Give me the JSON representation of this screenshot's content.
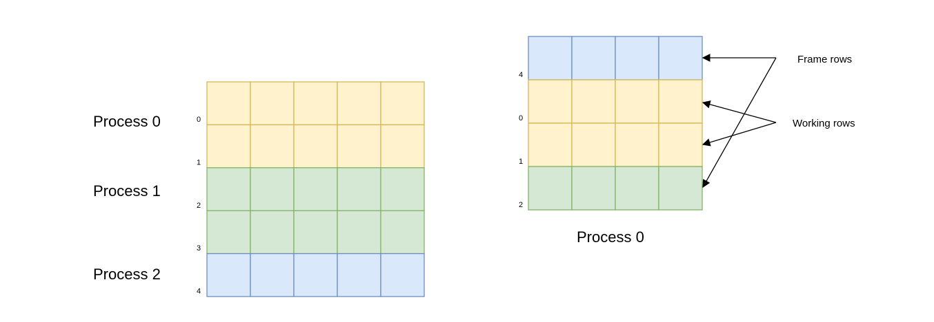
{
  "colors": {
    "yellow_fill": "#fff2cc",
    "yellow_stroke": "#d6b656",
    "green_fill": "#d5e8d4",
    "green_stroke": "#82b366",
    "blue_fill": "#dae8fc",
    "blue_stroke": "#6c8ebf",
    "arrow": "#000000"
  },
  "left_grid": {
    "process_labels": [
      "Process 0",
      "Process 1",
      "Process 2"
    ],
    "rows": [
      {
        "index": "0",
        "color": "yellow"
      },
      {
        "index": "1",
        "color": "yellow"
      },
      {
        "index": "2",
        "color": "green"
      },
      {
        "index": "3",
        "color": "green"
      },
      {
        "index": "4",
        "color": "blue"
      }
    ],
    "columns": 5
  },
  "right_grid": {
    "caption": "Process 0",
    "rows": [
      {
        "index": "4",
        "color": "blue"
      },
      {
        "index": "0",
        "color": "yellow"
      },
      {
        "index": "1",
        "color": "yellow"
      },
      {
        "index": "2",
        "color": "green"
      }
    ],
    "columns": 4
  },
  "annotations": {
    "frame_rows": "Frame rows",
    "working_rows": "Working rows"
  }
}
